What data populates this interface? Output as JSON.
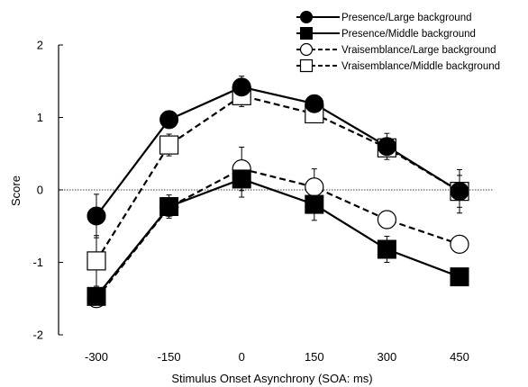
{
  "chart_data": {
    "type": "line",
    "xlabel": "Stimulus Onset Asynchrony (SOA: ms)",
    "ylabel": "Score",
    "categories": [
      "-300",
      "-150",
      "0",
      "150",
      "300",
      "450"
    ],
    "ylim": [
      -2,
      2
    ],
    "yticks": [
      "-2",
      "-1",
      "0",
      "1",
      "2"
    ],
    "reference_line": 0,
    "legend_position": "top-right",
    "series": [
      {
        "name": "Presence/Large background",
        "marker": "filled-circle",
        "line": "solid",
        "values": [
          -0.36,
          0.97,
          1.42,
          1.19,
          0.6,
          -0.02
        ],
        "errors": [
          0.3,
          0.08,
          0.15,
          0.07,
          0.18,
          0.22
        ]
      },
      {
        "name": "Presence/Middle background",
        "marker": "filled-square",
        "line": "solid",
        "values": [
          -1.47,
          -0.23,
          0.15,
          -0.2,
          -0.82,
          -1.2
        ],
        "errors": [
          0.1,
          0.16,
          0.25,
          0.22,
          0.18,
          0.08
        ]
      },
      {
        "name": "Vraisemblance/Large background",
        "marker": "open-circle",
        "line": "dashed",
        "values": [
          -1.5,
          -0.24,
          0.29,
          0.04,
          -0.41,
          -0.75
        ],
        "errors": [
          0.1,
          0.12,
          0.3,
          0.25,
          0.12,
          0.1
        ]
      },
      {
        "name": "Vraisemblance/Middle background",
        "marker": "open-square",
        "line": "dashed",
        "values": [
          -0.98,
          0.62,
          1.3,
          1.05,
          0.58,
          -0.02
        ],
        "errors": [
          0.35,
          0.15,
          0.15,
          0.12,
          0.1,
          0.3
        ]
      }
    ]
  }
}
